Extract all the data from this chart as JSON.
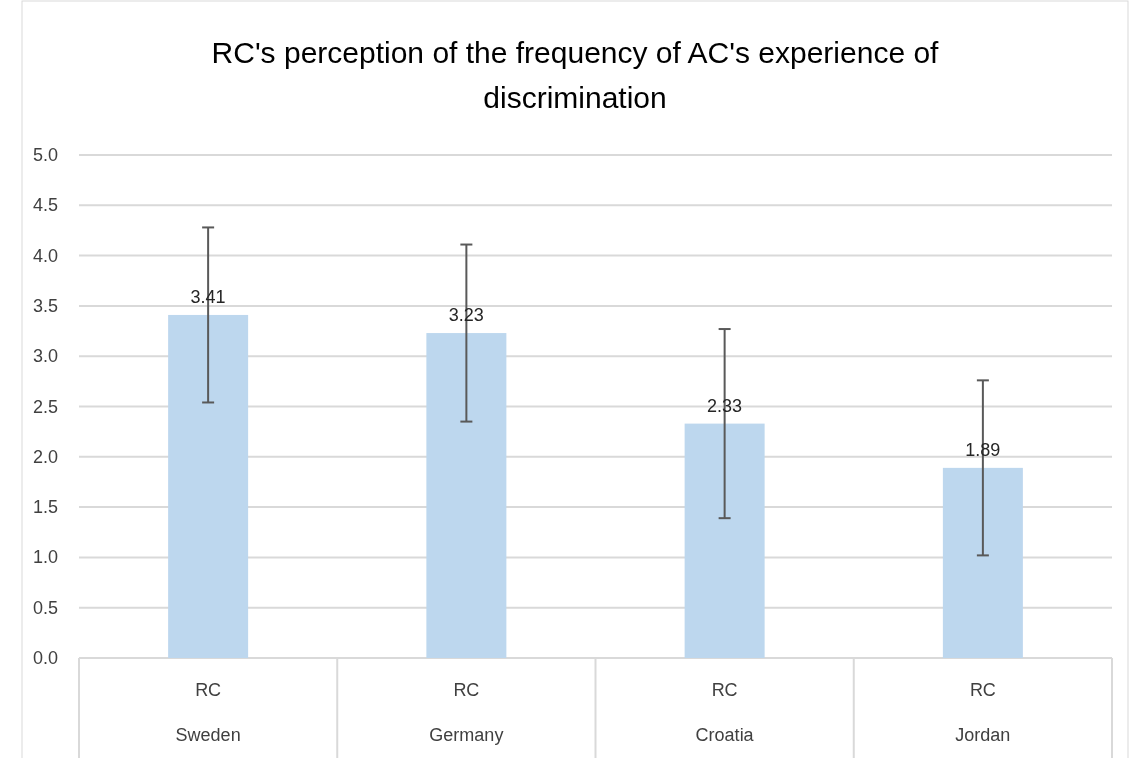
{
  "chart_data": {
    "type": "bar",
    "title": "RC's perception of the frequency of AC's experience of discrimination",
    "categories": [
      "RC\nSweden",
      "RC\nGermany",
      "RC\nCroatia",
      "RC\nJordan"
    ],
    "values": [
      3.41,
      3.23,
      2.33,
      1.89
    ],
    "errors": [
      0.87,
      0.88,
      0.94,
      0.87
    ],
    "color": "#bdd7ee",
    "ylim": [
      0,
      5
    ],
    "yticks": [
      {
        "value": 0,
        "label": "0.0"
      },
      {
        "value": 0.5,
        "label": "0.5"
      },
      {
        "value": 1,
        "label": "1.0"
      },
      {
        "value": 1.5,
        "label": "1.5"
      },
      {
        "value": 2,
        "label": "2.0"
      },
      {
        "value": 2.5,
        "label": "2.5"
      },
      {
        "value": 3,
        "label": "3.0"
      },
      {
        "value": 3.5,
        "label": "3.5"
      },
      {
        "value": 4,
        "label": "4.0"
      },
      {
        "value": 4.5,
        "label": "4.5"
      },
      {
        "value": 5,
        "label": "5.0"
      }
    ],
    "grid": "y",
    "data_labels": true
  }
}
